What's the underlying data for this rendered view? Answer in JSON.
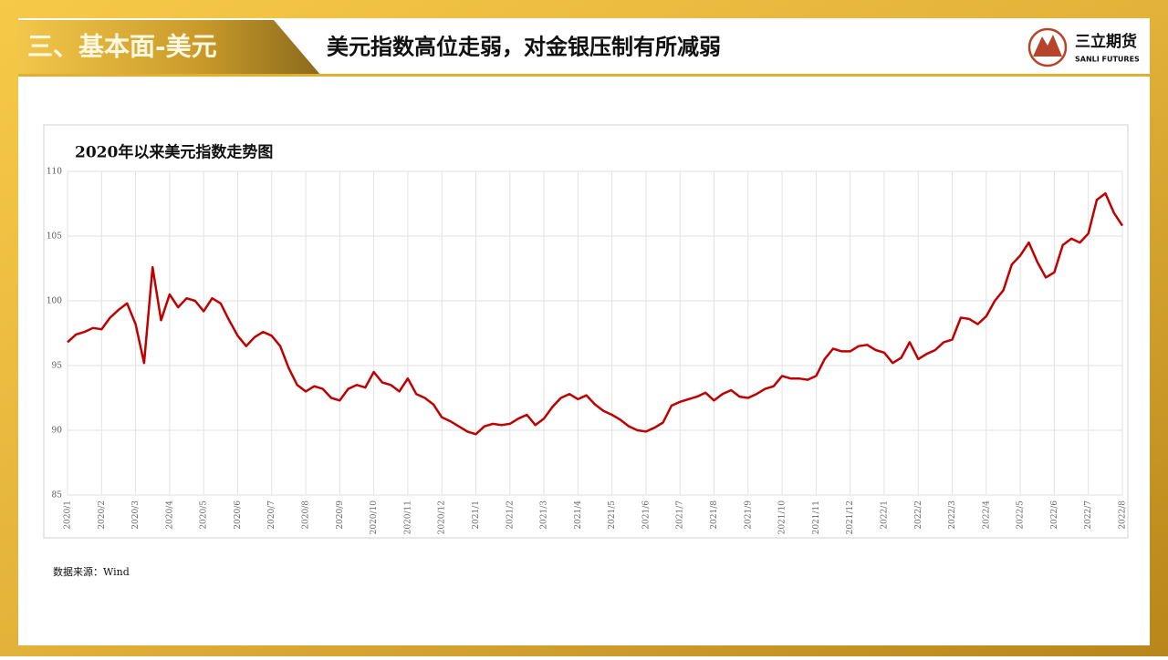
{
  "header": {
    "section": "三、基本面-美元",
    "headline": "美元指数高位走弱，对金银压制有所减弱",
    "logo_name": "三立期货",
    "logo_en": "SANLI FUTURES"
  },
  "chart_data": {
    "type": "line",
    "title": "2020年以来美元指数走势图",
    "color": "#c00000",
    "grid": true,
    "ylim": [
      85,
      110
    ],
    "yticks": [
      85,
      90,
      95,
      100,
      105,
      110
    ],
    "categories": [
      "2020/1",
      null,
      null,
      null,
      "2020/2",
      null,
      null,
      null,
      "2020/3",
      null,
      null,
      null,
      "2020/4",
      null,
      null,
      null,
      "2020/5",
      null,
      null,
      null,
      "2020/6",
      null,
      null,
      null,
      "2020/7",
      null,
      null,
      null,
      "2020/8",
      null,
      null,
      null,
      "2020/9",
      null,
      null,
      null,
      "2020/10",
      null,
      null,
      null,
      "2020/11",
      null,
      null,
      null,
      "2020/12",
      null,
      null,
      null,
      "2021/1",
      null,
      null,
      null,
      "2021/2",
      null,
      null,
      null,
      "2021/3",
      null,
      null,
      null,
      "2021/4",
      null,
      null,
      null,
      "2021/5",
      null,
      null,
      null,
      "2021/6",
      null,
      null,
      null,
      "2021/7",
      null,
      null,
      null,
      "2021/8",
      null,
      null,
      null,
      "2021/9",
      null,
      null,
      null,
      "2021/10",
      null,
      null,
      null,
      "2021/11",
      null,
      null,
      null,
      "2021/12",
      null,
      null,
      null,
      "2022/1",
      null,
      null,
      null,
      "2022/2",
      null,
      null,
      null,
      "2022/3",
      null,
      null,
      null,
      "2022/4",
      null,
      null,
      null,
      "2022/5",
      null,
      null,
      null,
      "2022/6",
      null,
      null,
      null,
      "2022/7",
      null,
      null,
      null,
      "2022/8"
    ],
    "values": [
      96.8,
      97.4,
      97.6,
      97.9,
      97.8,
      98.7,
      99.3,
      99.8,
      98.2,
      95.2,
      102.6,
      98.5,
      100.5,
      99.5,
      100.2,
      100.0,
      99.2,
      100.2,
      99.8,
      98.5,
      97.3,
      96.5,
      97.2,
      97.6,
      97.3,
      96.5,
      94.8,
      93.5,
      93.0,
      93.4,
      93.2,
      92.5,
      92.3,
      93.2,
      93.5,
      93.3,
      94.5,
      93.7,
      93.5,
      93.0,
      94.0,
      92.8,
      92.5,
      92.0,
      91.0,
      90.7,
      90.3,
      89.9,
      89.7,
      90.3,
      90.5,
      90.4,
      90.5,
      90.9,
      91.2,
      90.4,
      90.9,
      91.8,
      92.5,
      92.8,
      92.4,
      92.7,
      92.0,
      91.5,
      91.2,
      90.8,
      90.3,
      90.0,
      89.9,
      90.2,
      90.6,
      91.9,
      92.2,
      92.4,
      92.6,
      92.9,
      92.3,
      92.8,
      93.1,
      92.6,
      92.5,
      92.8,
      93.2,
      93.4,
      94.2,
      94.0,
      94.0,
      93.9,
      94.2,
      95.5,
      96.3,
      96.1,
      96.1,
      96.5,
      96.6,
      96.2,
      96.0,
      95.2,
      95.6,
      96.8,
      95.5,
      95.9,
      96.2,
      96.8,
      97.0,
      98.7,
      98.6,
      98.2,
      98.8,
      100.0,
      100.8,
      102.8,
      103.5,
      104.5,
      103.0,
      101.8,
      102.2,
      104.3,
      104.8,
      104.5,
      105.2,
      107.8,
      108.3,
      106.8,
      105.8
    ]
  },
  "source": "数据来源：Wind"
}
